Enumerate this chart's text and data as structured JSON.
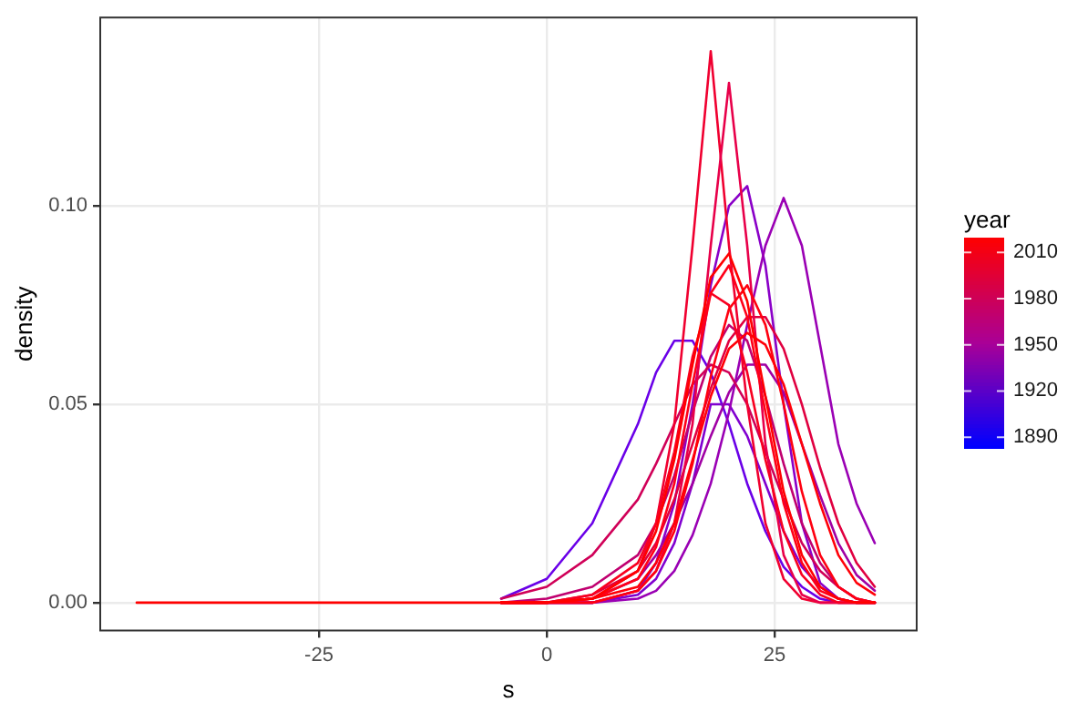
{
  "chart_data": {
    "type": "line",
    "xlabel": "s",
    "ylabel": "density",
    "clabel": "year",
    "x": [
      -45,
      -10,
      -5,
      0,
      5,
      10,
      12,
      14,
      16,
      18,
      20,
      22,
      24,
      26,
      28,
      30,
      32,
      34,
      36
    ],
    "xlim": [
      -49,
      40.6
    ],
    "xticks": [
      -25,
      0,
      25
    ],
    "ylim": [
      -0.007,
      0.1475
    ],
    "yticks": [
      {
        "value": 0,
        "label": "0.00"
      },
      {
        "value": 0.05,
        "label": "0.05"
      },
      {
        "value": 0.1,
        "label": "0.10"
      }
    ],
    "clim": [
      1883,
      2019
    ],
    "cticks": [
      1890,
      1920,
      1950,
      1980,
      2010
    ],
    "grid": true,
    "marker": "none",
    "line_style": "solid",
    "series": [
      {
        "color": "#6a00e8",
        "values": [
          null,
          null,
          0.001,
          0.006,
          0.02,
          0.045,
          0.058,
          0.066,
          0.066,
          0.058,
          0.045,
          0.03,
          0.018,
          0.009,
          0.004,
          0.001,
          0,
          0,
          0
        ]
      },
      {
        "color": "#8000d0",
        "values": [
          null,
          null,
          0,
          0,
          0,
          0.002,
          0.006,
          0.015,
          0.03,
          0.05,
          0.05,
          0.042,
          0.03,
          0.018,
          0.009,
          0.004,
          0.001,
          0,
          0
        ]
      },
      {
        "color": "#8a00c8",
        "values": [
          null,
          null,
          0,
          0,
          0,
          0.003,
          0.01,
          0.025,
          0.05,
          0.08,
          0.1,
          0.105,
          0.085,
          0.05,
          0.02,
          0.005,
          0.001,
          0,
          0
        ]
      },
      {
        "color": "#9a00b4",
        "values": [
          null,
          null,
          0,
          0,
          0,
          0.001,
          0.003,
          0.008,
          0.017,
          0.03,
          0.048,
          0.07,
          0.09,
          0.102,
          0.09,
          0.065,
          0.04,
          0.025,
          0.015
        ]
      },
      {
        "color": "#a000a4",
        "values": [
          null,
          null,
          0,
          0,
          0.001,
          0.006,
          0.012,
          0.02,
          0.03,
          0.042,
          0.053,
          0.06,
          0.06,
          0.053,
          0.04,
          0.027,
          0.015,
          0.007,
          0.003
        ]
      },
      {
        "color": "#c00070",
        "values": [
          null,
          null,
          0,
          0.001,
          0.004,
          0.012,
          0.02,
          0.032,
          0.048,
          0.062,
          0.07,
          0.066,
          0.052,
          0.035,
          0.02,
          0.01,
          0.004,
          0.001,
          0
        ]
      },
      {
        "color": "#d00058",
        "values": [
          null,
          null,
          0.001,
          0.004,
          0.012,
          0.026,
          0.035,
          0.045,
          0.055,
          0.06,
          0.058,
          0.05,
          0.038,
          0.026,
          0.015,
          0.008,
          0.004,
          0.001,
          0
        ]
      },
      {
        "color": "#e00040",
        "values": [
          null,
          null,
          0,
          0,
          0.002,
          0.008,
          0.015,
          0.026,
          0.04,
          0.054,
          0.066,
          0.072,
          0.072,
          0.064,
          0.05,
          0.034,
          0.02,
          0.01,
          0.004
        ]
      },
      {
        "color": "#f00030",
        "values": [
          null,
          null,
          0,
          0,
          0.001,
          0.008,
          0.02,
          0.045,
          0.09,
          0.139,
          0.09,
          0.05,
          0.02,
          0.006,
          0.001,
          0,
          0,
          0,
          0
        ]
      },
      {
        "color": "#e8004a",
        "values": [
          null,
          null,
          0,
          0,
          0,
          0.003,
          0.008,
          0.02,
          0.045,
          0.09,
          0.131,
          0.09,
          0.04,
          0.012,
          0.002,
          0,
          0,
          0,
          0
        ]
      },
      {
        "color": "#f80020",
        "values": [
          null,
          null,
          0,
          0,
          0.002,
          0.01,
          0.02,
          0.038,
          0.062,
          0.078,
          0.075,
          0.058,
          0.036,
          0.018,
          0.007,
          0.002,
          0,
          0,
          0
        ]
      },
      {
        "color": "#ff0018",
        "values": [
          null,
          null,
          0,
          0,
          0.001,
          0.006,
          0.014,
          0.03,
          0.055,
          0.078,
          0.085,
          0.072,
          0.048,
          0.025,
          0.01,
          0.003,
          0.001,
          0,
          0
        ]
      },
      {
        "color": "#ff0010",
        "values": [
          null,
          null,
          0,
          0,
          0,
          0.003,
          0.008,
          0.018,
          0.035,
          0.057,
          0.074,
          0.08,
          0.07,
          0.05,
          0.028,
          0.012,
          0.004,
          0.001,
          0
        ]
      },
      {
        "color": "#ff0008",
        "values": [
          null,
          null,
          0,
          0,
          0.001,
          0.004,
          0.01,
          0.02,
          0.036,
          0.052,
          0.064,
          0.068,
          0.065,
          0.055,
          0.04,
          0.025,
          0.012,
          0.005,
          0.002
        ]
      },
      {
        "color": "#ff0000",
        "values": [
          0,
          0,
          0,
          0,
          0.001,
          0.008,
          0.018,
          0.036,
          0.06,
          0.082,
          0.088,
          0.076,
          0.052,
          0.028,
          0.012,
          0.004,
          0.001,
          0,
          0
        ]
      }
    ]
  }
}
